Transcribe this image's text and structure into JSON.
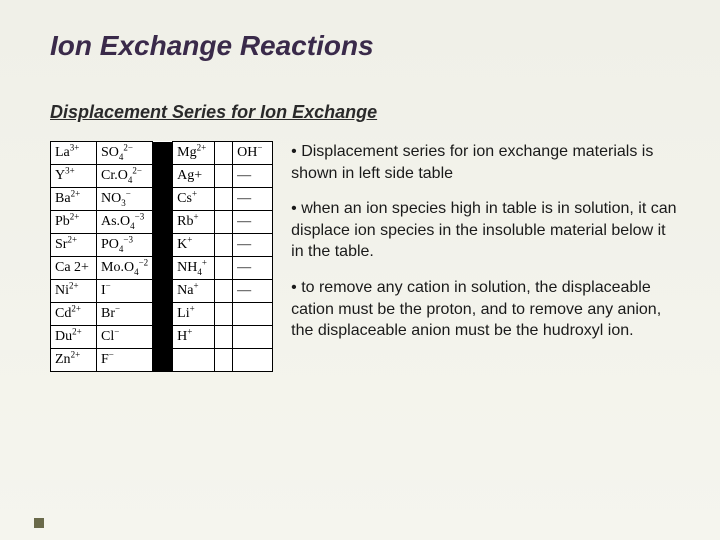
{
  "title": "Ion Exchange Reactions",
  "subtitle": "Displacement Series for Ion Exchange",
  "table": {
    "rows": [
      {
        "a": {
          "base": "La",
          "sup": "3+"
        },
        "b": {
          "base": "SO",
          "sub": "4",
          "sup": "2−"
        },
        "c": {
          "base": "Mg",
          "sup": "2+"
        },
        "d": {
          "base": "OH",
          "sup": "−"
        }
      },
      {
        "a": {
          "base": "Y",
          "sup": "3+"
        },
        "b": {
          "base": "Cr.O",
          "sub": "4",
          "sup": "2−"
        },
        "c": {
          "base": "Ag+",
          "sup": ""
        },
        "d": {
          "base": "—",
          "sup": ""
        }
      },
      {
        "a": {
          "base": "Ba",
          "sup": "2+"
        },
        "b": {
          "base": "NO",
          "sub": "3",
          "sup": "−"
        },
        "c": {
          "base": "Cs",
          "sup": "+"
        },
        "d": {
          "base": "—",
          "sup": ""
        }
      },
      {
        "a": {
          "base": "Pb",
          "sup": "2+"
        },
        "b": {
          "base": "As.O",
          "sub": "4",
          "sup": "−3"
        },
        "c": {
          "base": "Rb",
          "sup": "+"
        },
        "d": {
          "base": "—",
          "sup": ""
        }
      },
      {
        "a": {
          "base": "Sr",
          "sup": "2+"
        },
        "b": {
          "base": "PO",
          "sub": "4",
          "sup": "−3"
        },
        "c": {
          "base": "K",
          "sup": "+"
        },
        "d": {
          "base": "—",
          "sup": ""
        }
      },
      {
        "a": {
          "base": "Ca 2+",
          "sup": ""
        },
        "b": {
          "base": "Mo.O",
          "sub": "4",
          "sup": "−2"
        },
        "c": {
          "base": "NH",
          "sub": "4",
          "sup": "+"
        },
        "d": {
          "base": "—",
          "sup": ""
        }
      },
      {
        "a": {
          "base": "Ni",
          "sup": "2+"
        },
        "b": {
          "base": "I",
          "sup": "−"
        },
        "c": {
          "base": "Na",
          "sup": "+"
        },
        "d": {
          "base": "—",
          "sup": ""
        }
      },
      {
        "a": {
          "base": "Cd",
          "sup": "2+"
        },
        "b": {
          "base": "Br",
          "sup": "−"
        },
        "c": {
          "base": "Li",
          "sup": "+"
        },
        "d": {
          "base": "",
          "sup": ""
        }
      },
      {
        "a": {
          "base": "Du",
          "sup": "2+"
        },
        "b": {
          "base": "Cl",
          "sup": "−"
        },
        "c": {
          "base": "H",
          "sup": "+"
        },
        "d": {
          "base": "",
          "sup": ""
        }
      },
      {
        "a": {
          "base": "Zn",
          "sup": "2+"
        },
        "b": {
          "base": "F",
          "sup": "−"
        },
        "c": {
          "base": "",
          "sup": ""
        },
        "d": {
          "base": "",
          "sup": ""
        }
      }
    ]
  },
  "bullets": [
    "• Displacement series for ion exchange materials is shown in left side table",
    "• when an ion species high in table is in solution, it can displace ion species in the insoluble material below it in the table.",
    "• to remove any cation in solution, the displaceable cation must be the proton, and to remove any anion, the displaceable anion must be the hudroxyl ion."
  ]
}
